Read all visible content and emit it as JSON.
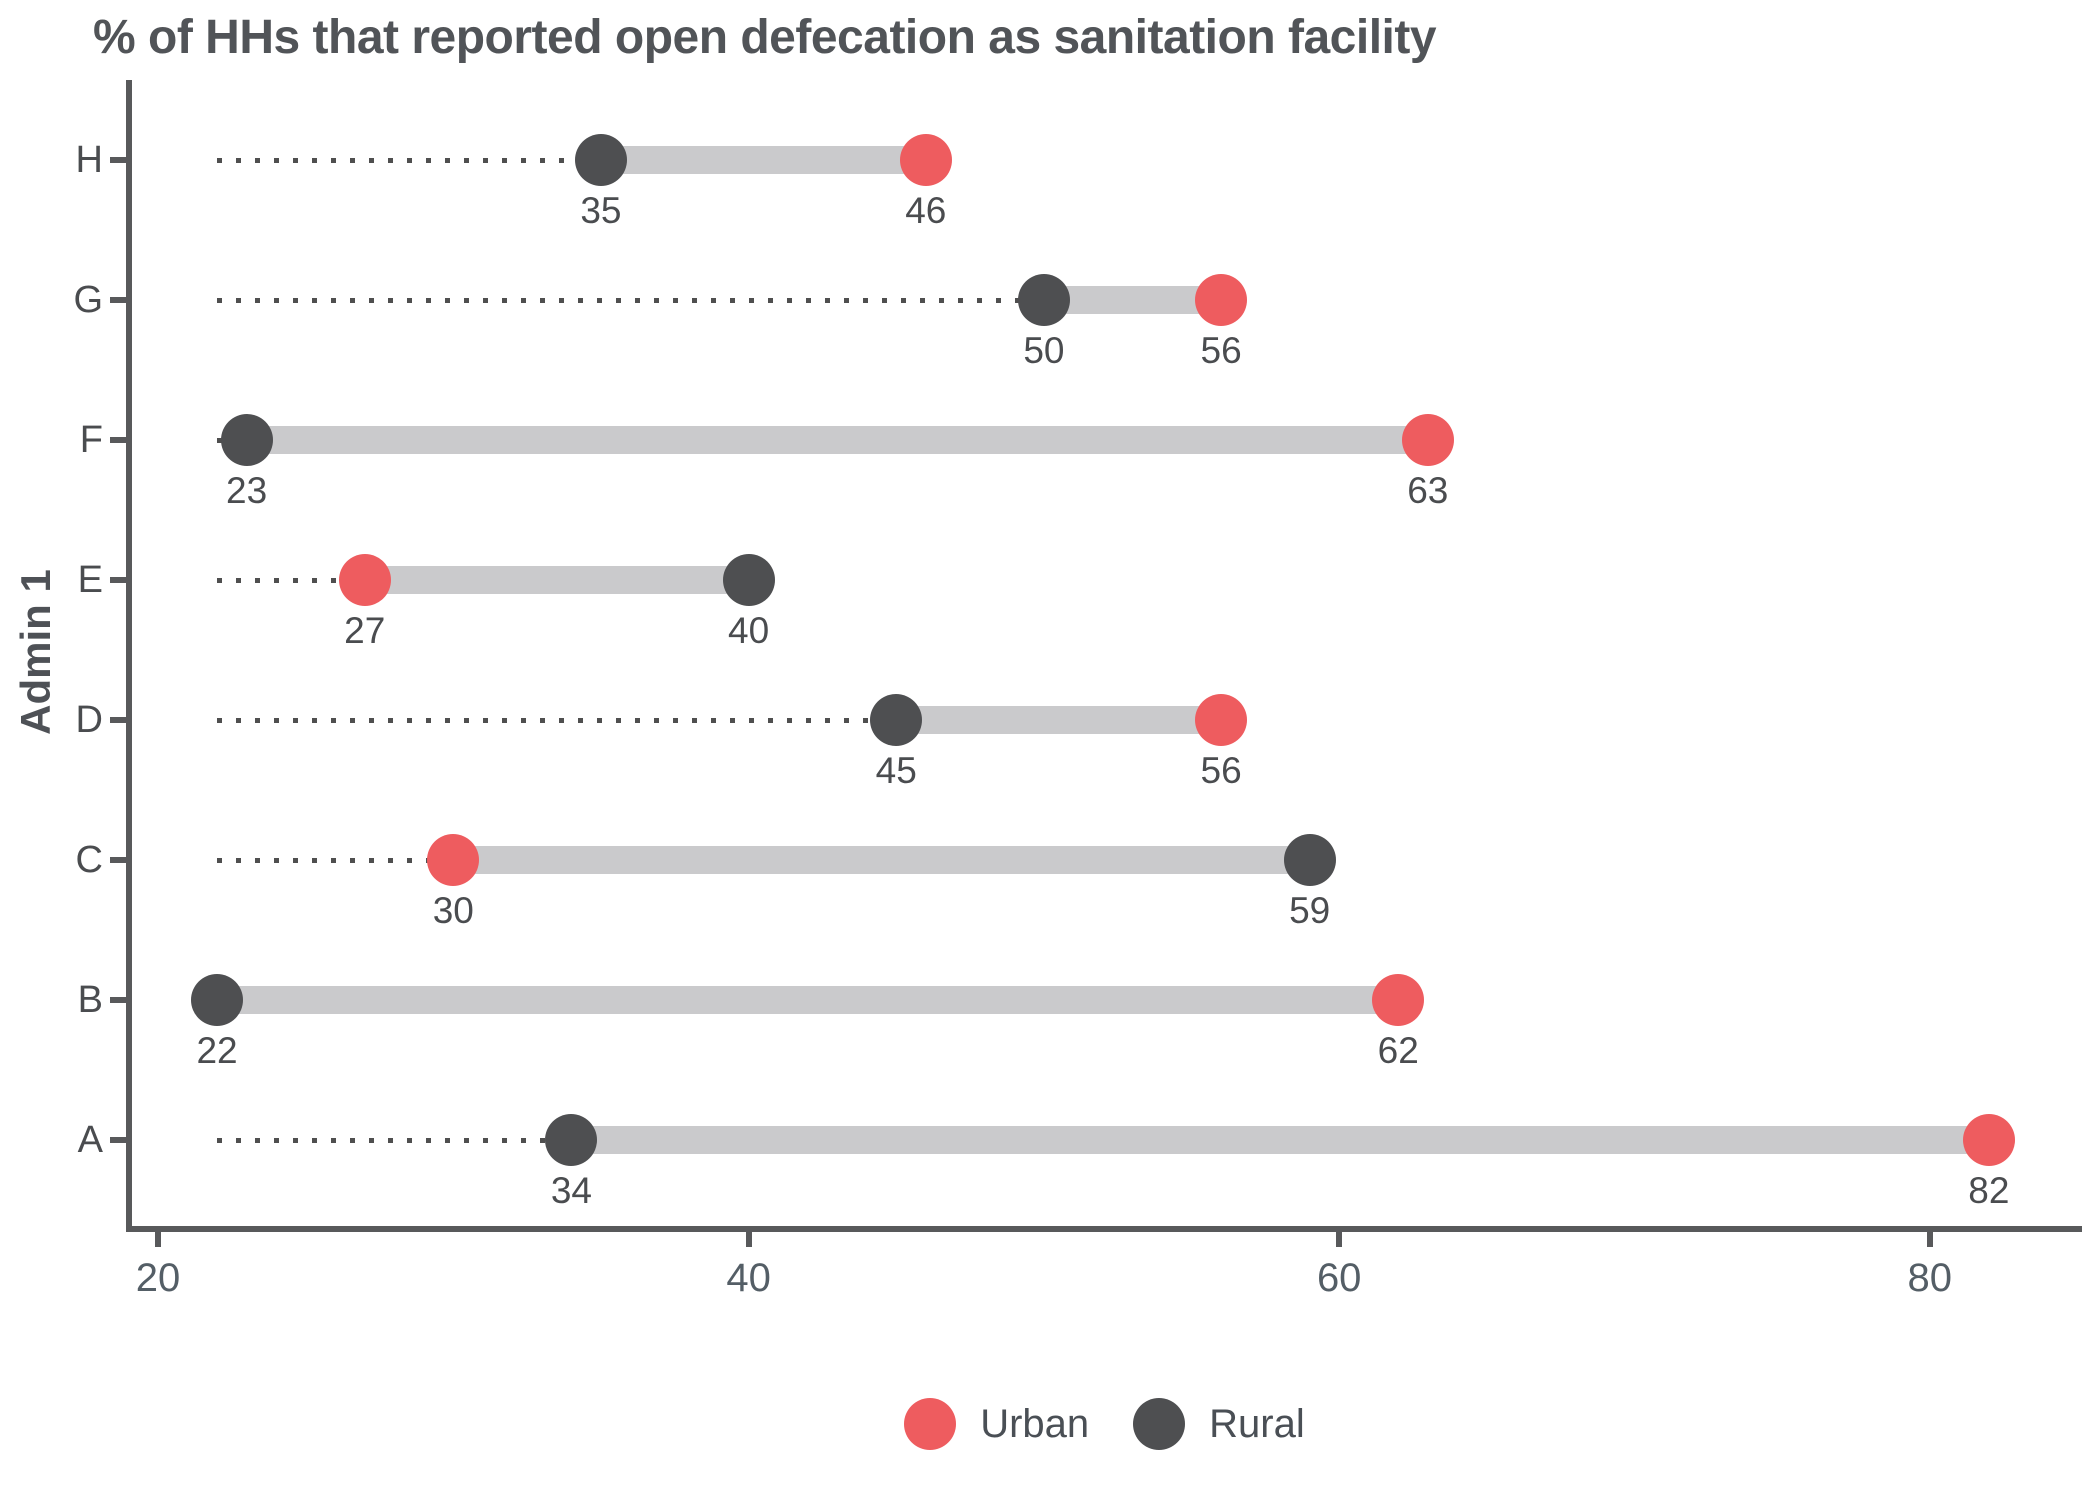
{
  "title": "% of HHs that reported open defecation as sanitation facility",
  "colors": {
    "urban": "#EE5C5F",
    "rural": "#4E4F51",
    "bar": "#CACACC",
    "axis": "#58595B",
    "leader": "#4F4F4F",
    "title_text": "#515458",
    "label_text": "#4A4C4F",
    "tick_text": "#545E66"
  },
  "chart_data": {
    "type": "dumbbell",
    "title": "% of HHs that reported open defecation as sanitation facility",
    "xlabel": "",
    "ylabel": "Admin 1",
    "categories": [
      "H",
      "G",
      "F",
      "E",
      "D",
      "C",
      "B",
      "A"
    ],
    "series": [
      {
        "name": "Urban",
        "color": "#EE5C5F",
        "values": [
          46,
          56,
          63,
          27,
          56,
          30,
          62,
          82
        ]
      },
      {
        "name": "Rural",
        "color": "#4E4F51",
        "values": [
          35,
          50,
          23,
          40,
          45,
          59,
          22,
          34
        ]
      }
    ],
    "x_ticks": [
      20,
      40,
      60,
      80
    ],
    "x_range": [
      19.0,
      85.1
    ],
    "leader_line_start": 22,
    "value_labels_shown": true,
    "grid": false,
    "legend_position": "bottom"
  }
}
